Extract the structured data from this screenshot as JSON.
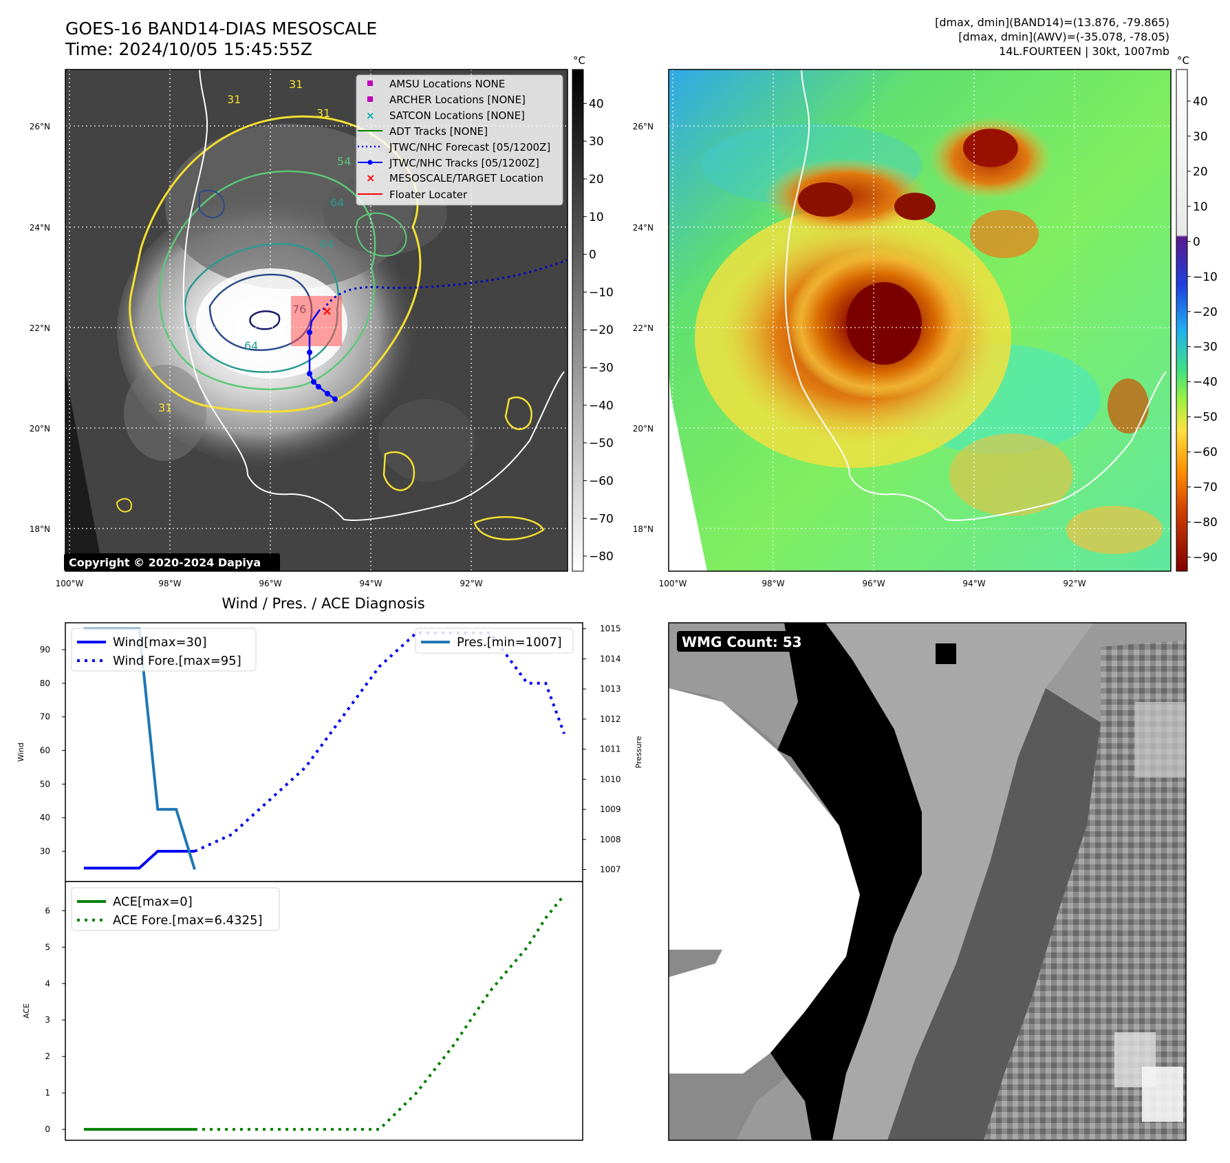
{
  "header": {
    "title_line1": "GOES-16 BAND14-DIAS MESOSCALE",
    "title_line2": "Time: 2024/10/05 15:45:55Z",
    "stats_line1": "[dmax, dmin](BAND14)=(13.876, -79.865)",
    "stats_line2": "[dmax, dmin](AWV)=(-35.078, -78.05)",
    "stats_line3": "14L.FOURTEEN | 30kt, 1007mb"
  },
  "maps": {
    "lat_labels": [
      "26°N",
      "24°N",
      "22°N",
      "20°N",
      "18°N"
    ],
    "lon_labels": [
      "100°W",
      "98°W",
      "96°W",
      "94°W",
      "92°W"
    ],
    "contour_labels": [
      "31",
      "31",
      "31",
      "54",
      "64",
      "64",
      "76",
      "64",
      "31"
    ],
    "copyright": "Copyright © 2020-2024 Dapiya",
    "colorbar_unit": "°C",
    "gray_colorbar_ticks": [
      "40",
      "30",
      "20",
      "10",
      "0",
      "−10",
      "−20",
      "−30",
      "−40",
      "−50",
      "−60",
      "−70",
      "−80"
    ],
    "color_colorbar_ticks": [
      "40",
      "30",
      "20",
      "10",
      "0",
      "−10",
      "−20",
      "−30",
      "−40",
      "−50",
      "−60",
      "−70",
      "−80",
      "−90"
    ],
    "legend": [
      {
        "label": "AMSU Locations NONE",
        "color": "#c000c0",
        "marker": "square"
      },
      {
        "label": "ARCHER Locations [NONE]",
        "color": "#c000c0",
        "marker": "square"
      },
      {
        "label": "SATCON Locations [NONE]",
        "color": "#00b0b0",
        "marker": "x"
      },
      {
        "label": "ADT Tracks [NONE]",
        "color": "#008000",
        "marker": "line"
      },
      {
        "label": "JTWC/NHC Forecast [05/1200Z]",
        "color": "#0000ff",
        "marker": "dotted"
      },
      {
        "label": "JTWC/NHC Tracks [05/1200Z]",
        "color": "#0000ff",
        "marker": "line-dot"
      },
      {
        "label": "MESOSCALE/TARGET Location",
        "color": "#ff0000",
        "marker": "x"
      },
      {
        "label": "Floater Locater",
        "color": "#ff0000",
        "marker": "line"
      }
    ]
  },
  "wmg": {
    "label": "WMG Count: 53"
  },
  "chart_data": [
    {
      "type": "line",
      "title": "Wind / Pres. / ACE Diagnosis",
      "ylabel": "Wind",
      "ylabel_right": "Pressure",
      "x": [
        0,
        1,
        2,
        3,
        4,
        5,
        6,
        7,
        8,
        9,
        10,
        11,
        12,
        13,
        14,
        15,
        16,
        17,
        18,
        19,
        20,
        21,
        22,
        23,
        24,
        25,
        26
      ],
      "ylim": [
        21,
        98
      ],
      "ylim_right": [
        1006.6,
        1015.2
      ],
      "yticks": [
        30,
        40,
        50,
        60,
        70,
        80,
        90
      ],
      "yticks_right": [
        1007,
        1008,
        1009,
        1010,
        1011,
        1012,
        1013,
        1014,
        1015
      ],
      "series": [
        {
          "name": "Wind[max=30]",
          "axis": "left",
          "style": "solid",
          "color": "#0000ee",
          "x": [
            0,
            1,
            2,
            3,
            4,
            5,
            6
          ],
          "values": [
            25,
            25,
            25,
            25,
            30,
            30,
            30
          ]
        },
        {
          "name": "Wind Fore.[max=95]",
          "axis": "left",
          "style": "dotted",
          "color": "#0000ee",
          "x": [
            6,
            8,
            10,
            12,
            14,
            16,
            18,
            20,
            22,
            24,
            25,
            26
          ],
          "values": [
            30,
            35,
            45,
            55,
            70,
            85,
            95,
            95,
            95,
            80,
            80,
            65
          ]
        },
        {
          "name": "Pres.[min=1007]",
          "axis": "right",
          "style": "solid",
          "color": "#1f77b4",
          "x": [
            0,
            1,
            2,
            3,
            4,
            5,
            6
          ],
          "values": [
            1015,
            1015,
            1015,
            1015,
            1009,
            1009,
            1007
          ]
        }
      ]
    },
    {
      "type": "line",
      "ylabel": "ACE",
      "x": [
        0,
        1,
        2,
        3,
        4,
        5,
        6,
        7,
        8,
        9,
        10,
        11,
        12,
        13,
        14,
        15,
        16,
        17,
        18,
        19,
        20,
        21,
        22,
        23,
        24,
        25,
        26
      ],
      "ylim": [
        -0.3,
        6.8
      ],
      "yticks": [
        0,
        1,
        2,
        3,
        4,
        5,
        6
      ],
      "series": [
        {
          "name": "ACE[max=0]",
          "style": "solid",
          "color": "#008000",
          "x": [
            0,
            1,
            2,
            3,
            4,
            5,
            6
          ],
          "values": [
            0,
            0,
            0,
            0,
            0,
            0,
            0
          ]
        },
        {
          "name": "ACE Fore.[max=6.4325]",
          "style": "dotted",
          "color": "#008000",
          "x": [
            6,
            8,
            10,
            12,
            14,
            16,
            18,
            20,
            22,
            24,
            25,
            26
          ],
          "values": [
            0,
            0,
            0,
            0,
            0,
            0,
            1.0,
            2.3,
            3.8,
            5.0,
            5.8,
            6.4325
          ]
        }
      ]
    }
  ]
}
